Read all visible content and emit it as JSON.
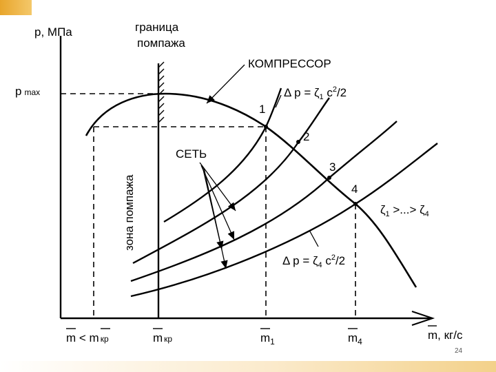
{
  "colors": {
    "accent_top": "#e8a52b",
    "accent_bottom": "#f3d18a",
    "ink": "#000000",
    "background": "#ffffff"
  },
  "axes": {
    "y_label_p": "p",
    "y_label_unit": ", МПа",
    "x_label_m": "m",
    "x_label_unit": ", кг/с",
    "pmax_p": "p",
    "pmax_sub": "max"
  },
  "labels": {
    "surge_boundary_line1": "граница",
    "surge_boundary_line2": "помпажа",
    "compressor": "КОМПРЕССОР",
    "network": "СЕТЬ",
    "surge_zone": "зона помпажа",
    "eq1_prefix": "Δ p = ζ",
    "eq1_sub": "1",
    "eq1_suffix": " c",
    "eq1_sup": "2",
    "eq1_tail": "/2",
    "eq4_prefix": "Δ p = ζ",
    "eq4_sub": "4",
    "eq4_suffix": " c",
    "eq4_sup": "2",
    "eq4_tail": "/2",
    "zeta_order_a": "ζ",
    "zeta_order_a_sub": "1",
    "zeta_order_mid": " >...> ζ",
    "zeta_order_b_sub": "4"
  },
  "points": [
    "1",
    "2",
    "3",
    "4"
  ],
  "x_ticks": {
    "m_lt_left": "m",
    "m_lt_op": " < ",
    "m_lt_right": "m",
    "m_lt_right_sub": "кр",
    "m_kr": "m",
    "m_kr_sub": "кр",
    "m1": "m",
    "m1_sub": "1",
    "m4": "m",
    "m4_sub": "4"
  },
  "page_number": "24"
}
